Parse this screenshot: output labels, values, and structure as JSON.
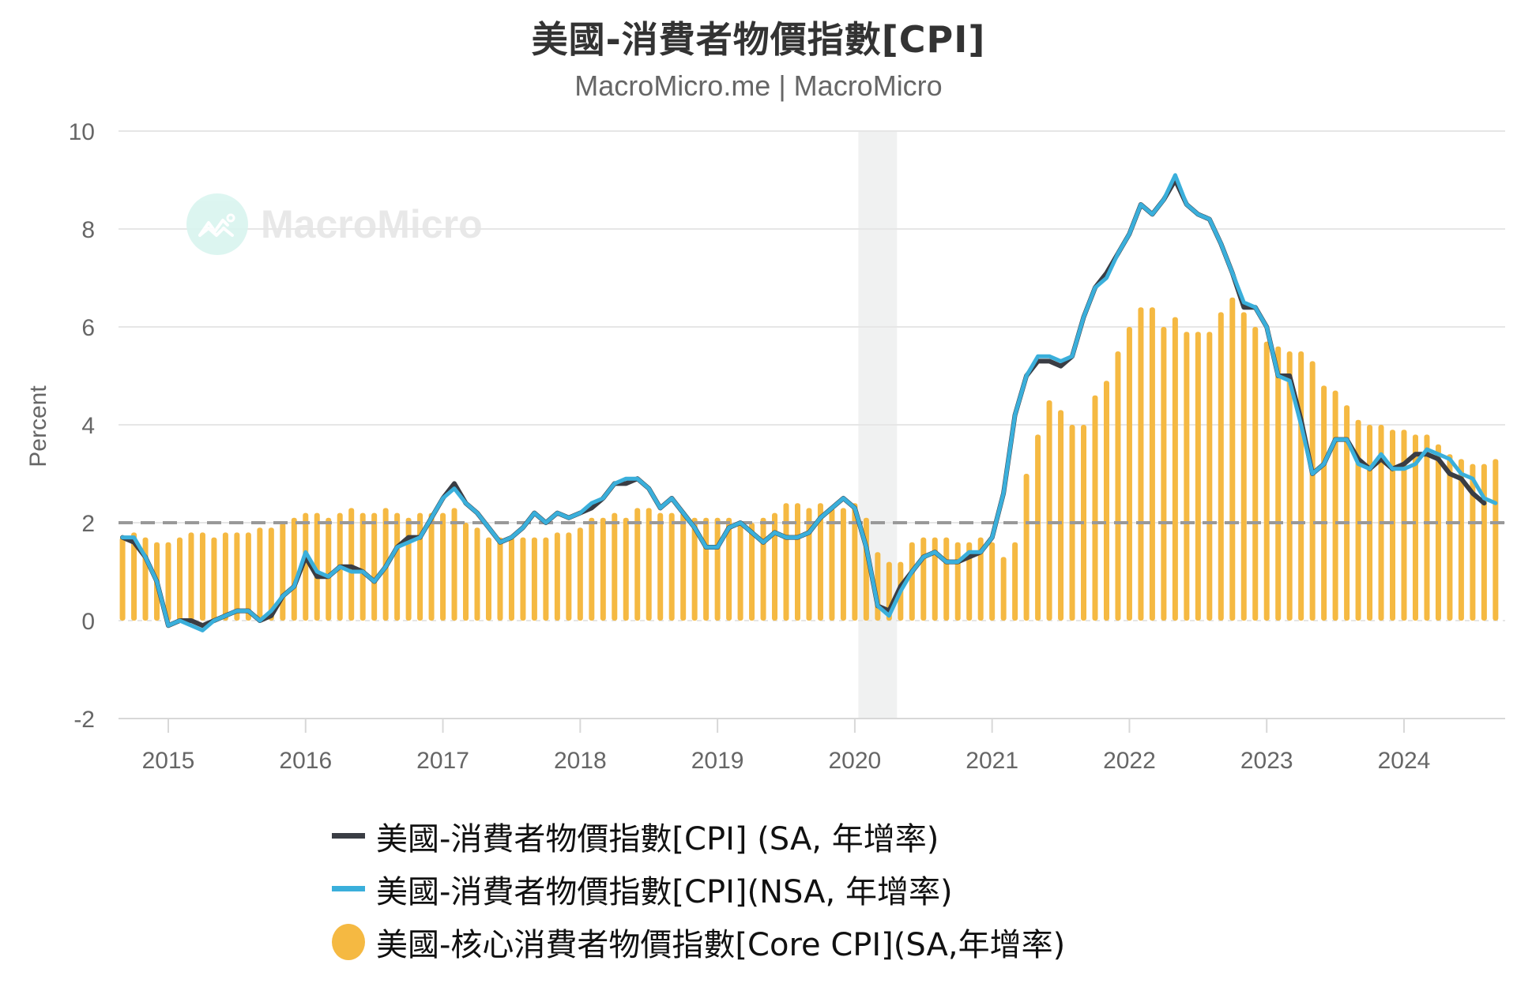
{
  "header": {
    "title": "美國-消費者物價指數[CPI]",
    "subtitle": "MacroMicro.me | MacroMicro"
  },
  "watermark": {
    "text": "MacroMicro",
    "icon": "macromicro-logo-icon"
  },
  "colors": {
    "cpi_sa": "#3a3d44",
    "cpi_nsa": "#3aafdb",
    "core_cpi": "#f5b942",
    "reference_line": "#999999",
    "grid": "#e6e6e6",
    "recession_band": "#f0f1f1"
  },
  "legend": {
    "items": [
      {
        "label": "美國-消費者物價指數[CPI] (SA, 年增率)",
        "color": "#3a3d44",
        "shape": "line"
      },
      {
        "label": "美國-消費者物價指數[CPI](NSA, 年增率)",
        "color": "#3aafdb",
        "shape": "line"
      },
      {
        "label": "美國-核心消費者物價指數[Core CPI](SA,年增率)",
        "color": "#f5b942",
        "shape": "circle"
      }
    ]
  },
  "chart_data": {
    "type": "line+bar",
    "title": "美國-消費者物價指數[CPI]",
    "subtitle": "MacroMicro.me | MacroMicro",
    "xlabel": "",
    "ylabel": "Percent",
    "ylim": [
      -2,
      10
    ],
    "yticks": [
      -2,
      0,
      2,
      4,
      6,
      8,
      10
    ],
    "xticks": [
      "2015",
      "2016",
      "2017",
      "2018",
      "2019",
      "2020",
      "2021",
      "2022",
      "2023",
      "2024"
    ],
    "grid": true,
    "legend_position": "bottom",
    "x_start": "2014-09",
    "x_end": "2024-09",
    "frequency": "monthly",
    "reference_line": {
      "y": 2,
      "style": "dashed"
    },
    "shaded_regions": [
      {
        "from": "2020-02",
        "to": "2020-04",
        "label": "recession"
      }
    ],
    "series": [
      {
        "name": "美國-消費者物價指數[CPI] (SA, 年增率)",
        "type": "line",
        "values": [
          1.7,
          1.6,
          1.3,
          0.8,
          -0.1,
          0.0,
          0.0,
          -0.1,
          0.0,
          0.1,
          0.2,
          0.2,
          0.0,
          0.1,
          0.5,
          0.7,
          1.3,
          0.9,
          0.9,
          1.1,
          1.1,
          1.0,
          0.8,
          1.1,
          1.5,
          1.7,
          1.7,
          2.1,
          2.5,
          2.8,
          2.4,
          2.2,
          1.9,
          1.6,
          1.7,
          1.9,
          2.2,
          2.0,
          2.2,
          2.1,
          2.2,
          2.3,
          2.5,
          2.8,
          2.8,
          2.9,
          2.7,
          2.3,
          2.5,
          2.2,
          1.9,
          1.5,
          1.5,
          1.9,
          2.0,
          1.8,
          1.6,
          1.8,
          1.7,
          1.7,
          1.8,
          2.1,
          2.3,
          2.5,
          2.3,
          1.5,
          0.3,
          0.2,
          0.7,
          1.0,
          1.3,
          1.4,
          1.2,
          1.2,
          1.3,
          1.4,
          1.7,
          2.6,
          4.2,
          5.0,
          5.3,
          5.3,
          5.2,
          5.4,
          6.2,
          6.8,
          7.1,
          7.5,
          7.9,
          8.5,
          8.3,
          8.6,
          9.0,
          8.5,
          8.3,
          8.2,
          7.7,
          7.1,
          6.4,
          6.4,
          6.0,
          5.0,
          5.0,
          4.1,
          3.0,
          3.2,
          3.7,
          3.7,
          3.3,
          3.1,
          3.3,
          3.1,
          3.2,
          3.4,
          3.4,
          3.3,
          3.0,
          2.9,
          2.6,
          2.4
        ],
        "color": "#3a3d44"
      },
      {
        "name": "美國-消費者物價指數[CPI](NSA, 年增率)",
        "type": "line",
        "values": [
          1.7,
          1.7,
          1.3,
          0.8,
          -0.1,
          0.0,
          -0.1,
          -0.2,
          0.0,
          0.1,
          0.2,
          0.2,
          0.0,
          0.2,
          0.5,
          0.7,
          1.4,
          1.0,
          0.9,
          1.1,
          1.0,
          1.0,
          0.8,
          1.1,
          1.5,
          1.6,
          1.7,
          2.1,
          2.5,
          2.7,
          2.4,
          2.2,
          1.9,
          1.6,
          1.7,
          1.9,
          2.2,
          2.0,
          2.2,
          2.1,
          2.2,
          2.4,
          2.5,
          2.8,
          2.9,
          2.9,
          2.7,
          2.3,
          2.5,
          2.2,
          1.9,
          1.5,
          1.5,
          1.9,
          2.0,
          1.8,
          1.6,
          1.8,
          1.7,
          1.7,
          1.8,
          2.1,
          2.3,
          2.5,
          2.3,
          1.5,
          0.3,
          0.1,
          0.6,
          1.0,
          1.3,
          1.4,
          1.2,
          1.2,
          1.4,
          1.4,
          1.7,
          2.6,
          4.2,
          5.0,
          5.4,
          5.4,
          5.3,
          5.4,
          6.2,
          6.8,
          7.0,
          7.5,
          7.9,
          8.5,
          8.3,
          8.6,
          9.1,
          8.5,
          8.3,
          8.2,
          7.7,
          7.1,
          6.5,
          6.4,
          6.0,
          5.0,
          4.9,
          4.0,
          3.0,
          3.2,
          3.7,
          3.7,
          3.2,
          3.1,
          3.4,
          3.1,
          3.1,
          3.2,
          3.5,
          3.4,
          3.3,
          3.0,
          2.9,
          2.5,
          2.4
        ],
        "color": "#3aafdb"
      },
      {
        "name": "美國-核心消費者物價指數[Core CPI](SA,年增率)",
        "type": "bar",
        "values": [
          1.7,
          1.8,
          1.7,
          1.6,
          1.6,
          1.7,
          1.8,
          1.8,
          1.7,
          1.8,
          1.8,
          1.8,
          1.9,
          1.9,
          2.0,
          2.1,
          2.2,
          2.2,
          2.1,
          2.2,
          2.3,
          2.2,
          2.2,
          2.3,
          2.2,
          2.1,
          2.2,
          2.2,
          2.2,
          2.3,
          2.0,
          1.9,
          1.7,
          1.7,
          1.7,
          1.7,
          1.7,
          1.7,
          1.8,
          1.8,
          1.9,
          2.1,
          2.1,
          2.2,
          2.1,
          2.3,
          2.3,
          2.2,
          2.2,
          2.2,
          2.1,
          2.1,
          2.1,
          2.1,
          2.0,
          2.0,
          2.1,
          2.2,
          2.4,
          2.4,
          2.3,
          2.4,
          2.3,
          2.3,
          2.4,
          2.1,
          1.4,
          1.2,
          1.2,
          1.6,
          1.7,
          1.7,
          1.7,
          1.6,
          1.6,
          1.7,
          1.6,
          1.3,
          1.6,
          3.0,
          3.8,
          4.5,
          4.3,
          4.0,
          4.0,
          4.6,
          4.9,
          5.5,
          6.0,
          6.4,
          6.4,
          6.0,
          6.2,
          5.9,
          5.9,
          5.9,
          6.3,
          6.6,
          6.3,
          6.0,
          5.7,
          5.6,
          5.5,
          5.5,
          5.3,
          4.8,
          4.7,
          4.4,
          4.1,
          4.0,
          4.0,
          3.9,
          3.9,
          3.8,
          3.8,
          3.6,
          3.4,
          3.3,
          3.2,
          3.2,
          3.3
        ],
        "color": "#f5b942"
      }
    ]
  }
}
